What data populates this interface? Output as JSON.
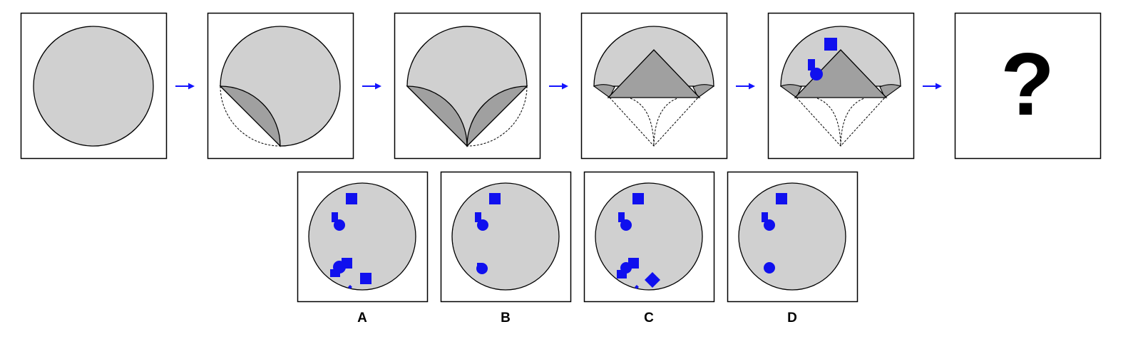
{
  "question_mark": "?",
  "options": [
    {
      "label": "A"
    },
    {
      "label": "B"
    },
    {
      "label": "C"
    },
    {
      "label": "D"
    }
  ],
  "colors": {
    "circle_fill": "#d0d0d0",
    "fold_fill": "#a0a0a0",
    "frame_stroke": "#000000",
    "marker_blue": "#1010ee",
    "arrow_blue": "#1414ff"
  },
  "icons": {
    "step_arrow": "right-arrow-icon",
    "square_marker": "square-icon",
    "circle_marker": "circle-icon",
    "diamond_marker": "diamond-icon"
  }
}
